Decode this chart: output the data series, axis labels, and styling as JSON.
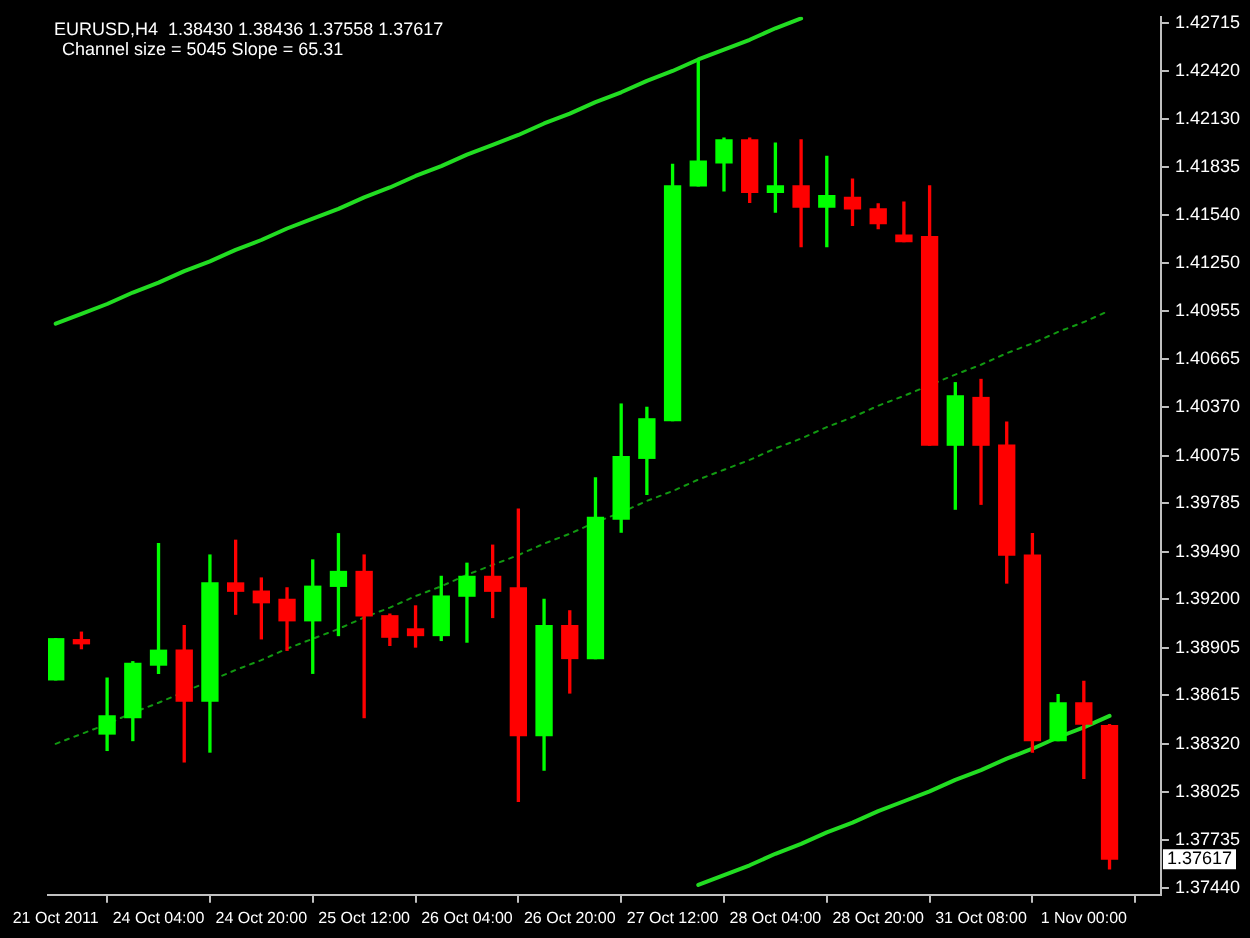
{
  "chart_data": {
    "type": "candlestick",
    "title": "EURUSD,H4  1.38430 1.38436 1.37558 1.37617",
    "subtitle": "Channel size = 5045 Slope = 65.31",
    "categories": [
      "21 Oct 2011",
      null,
      null,
      null,
      "24 Oct 04:00",
      null,
      null,
      null,
      "24 Oct 20:00",
      null,
      null,
      null,
      "25 Oct 12:00",
      null,
      null,
      null,
      "26 Oct 04:00",
      null,
      null,
      null,
      "26 Oct 20:00",
      null,
      null,
      null,
      "27 Oct 12:00",
      null,
      null,
      null,
      "28 Oct 04:00",
      null,
      null,
      null,
      "28 Oct 20:00",
      null,
      null,
      null,
      "31 Oct 08:00",
      null,
      null,
      null,
      "1 Nov 00:00",
      null
    ],
    "ohlc": [
      [
        1.3871,
        1.3896,
        1.3871,
        1.3896
      ],
      [
        1.3894,
        1.39,
        1.389,
        1.3893
      ],
      [
        1.3838,
        1.3872,
        1.3828,
        1.3849
      ],
      [
        1.3848,
        1.3882,
        1.3834,
        1.3881
      ],
      [
        1.388,
        1.3954,
        1.3875,
        1.3889
      ],
      [
        1.3889,
        1.3904,
        1.3821,
        1.3858
      ],
      [
        1.3858,
        1.3947,
        1.3827,
        1.393
      ],
      [
        1.393,
        1.3956,
        1.3911,
        1.3925
      ],
      [
        1.3925,
        1.3933,
        1.3896,
        1.3918
      ],
      [
        1.392,
        1.3927,
        1.3889,
        1.3907
      ],
      [
        1.3907,
        1.3944,
        1.3875,
        1.3928
      ],
      [
        1.3928,
        1.396,
        1.3898,
        1.3937
      ],
      [
        1.3937,
        1.3947,
        1.3848,
        1.391
      ],
      [
        1.391,
        1.3911,
        1.3892,
        1.3897
      ],
      [
        1.3902,
        1.3916,
        1.3891,
        1.3898
      ],
      [
        1.3898,
        1.3934,
        1.3895,
        1.3922
      ],
      [
        1.3922,
        1.3942,
        1.3894,
        1.3934
      ],
      [
        1.3934,
        1.3953,
        1.3909,
        1.3925
      ],
      [
        1.3927,
        1.3975,
        1.3797,
        1.3837
      ],
      [
        1.3837,
        1.392,
        1.3816,
        1.3904
      ],
      [
        1.3904,
        1.3913,
        1.3863,
        1.3884
      ],
      [
        1.3884,
        1.3994,
        1.3884,
        1.397
      ],
      [
        1.3969,
        1.4039,
        1.3961,
        1.4007
      ],
      [
        1.4006,
        1.4037,
        1.3984,
        1.403
      ],
      [
        1.4029,
        1.4185,
        1.4029,
        1.4172
      ],
      [
        1.4172,
        1.4248,
        1.4172,
        1.4187
      ],
      [
        1.4186,
        1.4201,
        1.4169,
        1.42
      ],
      [
        1.42,
        1.4201,
        1.4162,
        1.4168
      ],
      [
        1.4168,
        1.4198,
        1.4156,
        1.4172
      ],
      [
        1.4172,
        1.42,
        1.4135,
        1.4159
      ],
      [
        1.4159,
        1.419,
        1.4135,
        1.4166
      ],
      [
        1.4165,
        1.4176,
        1.4148,
        1.4158
      ],
      [
        1.4158,
        1.4161,
        1.4146,
        1.4149
      ],
      [
        1.4142,
        1.4162,
        1.4138,
        1.4138
      ],
      [
        1.4141,
        1.4172,
        1.4014,
        1.4014
      ],
      [
        1.4014,
        1.4052,
        1.3975,
        1.4044
      ],
      [
        1.4043,
        1.4054,
        1.3978,
        1.4014
      ],
      [
        1.4014,
        1.4028,
        1.393,
        1.3947
      ],
      [
        1.3947,
        1.396,
        1.3827,
        1.3834
      ],
      [
        1.3834,
        1.3862,
        1.3834,
        1.3857
      ],
      [
        1.3857,
        1.387,
        1.3811,
        1.3844
      ],
      [
        1.3843,
        1.38436,
        1.37558,
        1.37617
      ]
    ],
    "colors": [
      "#00ff00",
      "#ff0000",
      "#00ff00",
      "#00ff00",
      "#00ff00",
      "#ff0000",
      "#00ff00",
      "#ff0000",
      "#ff0000",
      "#ff0000",
      "#00ff00",
      "#00ff00",
      "#ff0000",
      "#ff0000",
      "#ff0000",
      "#00ff00",
      "#00ff00",
      "#ff0000",
      "#ff0000",
      "#00ff00",
      "#ff0000",
      "#00ff00",
      "#00ff00",
      "#00ff00",
      "#00ff00",
      "#00ff00",
      "#00ff00",
      "#ff0000",
      "#00ff00",
      "#ff0000",
      "#00ff00",
      "#ff0000",
      "#ff0000",
      "#ff0000",
      "#ff0000",
      "#00ff00",
      "#ff0000",
      "#ff0000",
      "#ff0000",
      "#00ff00",
      "#ff0000",
      "#ff0000"
    ],
    "series": [
      {
        "type": "line",
        "color": "#22dd22",
        "line_style": "solid",
        "values": [
          1.4088,
          1.4094,
          1.41,
          1.4107,
          1.4113,
          1.412,
          1.4126,
          1.4133,
          1.4139,
          1.4146,
          1.4152,
          1.4158,
          1.4165,
          1.4171,
          1.4178,
          1.4184,
          1.4191,
          1.4197,
          1.4203,
          1.421,
          1.4216,
          1.4223,
          1.4229,
          1.4236,
          1.4242,
          1.4249,
          1.4255,
          1.4261,
          1.4268,
          1.4274,
          null,
          null,
          null,
          null,
          null,
          null,
          null,
          null,
          null,
          null,
          null,
          null
        ]
      },
      {
        "type": "line",
        "color": "#119911",
        "line_style": "dotted",
        "values": [
          1.3832,
          1.3838,
          1.3844,
          1.3851,
          1.3857,
          null,
          null,
          1.3877,
          1.3883,
          1.389,
          1.3896,
          1.3902,
          1.3909,
          1.3915,
          1.3922,
          1.3928,
          1.3935,
          1.3941,
          1.3947,
          1.3954,
          1.396,
          1.3967,
          1.3973,
          1.398,
          1.3986,
          1.3993,
          1.3999,
          1.4005,
          1.4012,
          1.4018,
          1.4025,
          1.4031,
          1.4038,
          1.4044,
          null,
          1.4057,
          1.4063,
          1.407,
          1.4076,
          1.4083,
          1.4089,
          1.4096
        ]
      },
      {
        "type": "line",
        "color": "#22dd22",
        "line_style": "solid",
        "values": [
          null,
          null,
          null,
          null,
          null,
          null,
          null,
          null,
          null,
          null,
          null,
          null,
          null,
          null,
          null,
          null,
          null,
          null,
          null,
          null,
          null,
          null,
          null,
          null,
          null,
          1.3746,
          1.3752,
          1.3758,
          1.3765,
          1.3771,
          1.3778,
          1.3784,
          1.3791,
          1.3797,
          1.3803,
          1.381,
          1.3816,
          1.3823,
          1.3829,
          1.3836,
          1.3842,
          1.3849
        ]
      }
    ],
    "ylim": [
      1.374,
      1.4275
    ],
    "yticks": [
      1.42715,
      {
        "value": 1.4242,
        "label": "1.42420"
      },
      {
        "value": 1.4213,
        "label": "1.42130"
      },
      1.41835,
      {
        "value": 1.4154,
        "label": "1.41540"
      },
      {
        "value": 1.4125,
        "label": "1.41250"
      },
      1.40955,
      1.40665,
      {
        "value": 1.4037,
        "label": "1.40370"
      },
      1.40075,
      1.39785,
      {
        "value": 1.3949,
        "label": "1.39490"
      },
      {
        "value": 1.392,
        "label": "1.39200"
      },
      1.38905,
      1.38615,
      {
        "value": 1.3832,
        "label": "1.38320"
      },
      1.38025,
      1.37735,
      {
        "value": 1.3744,
        "label": "1.37440"
      }
    ],
    "grid": false,
    "legend": false,
    "annotations": [
      "1.37617"
    ]
  }
}
